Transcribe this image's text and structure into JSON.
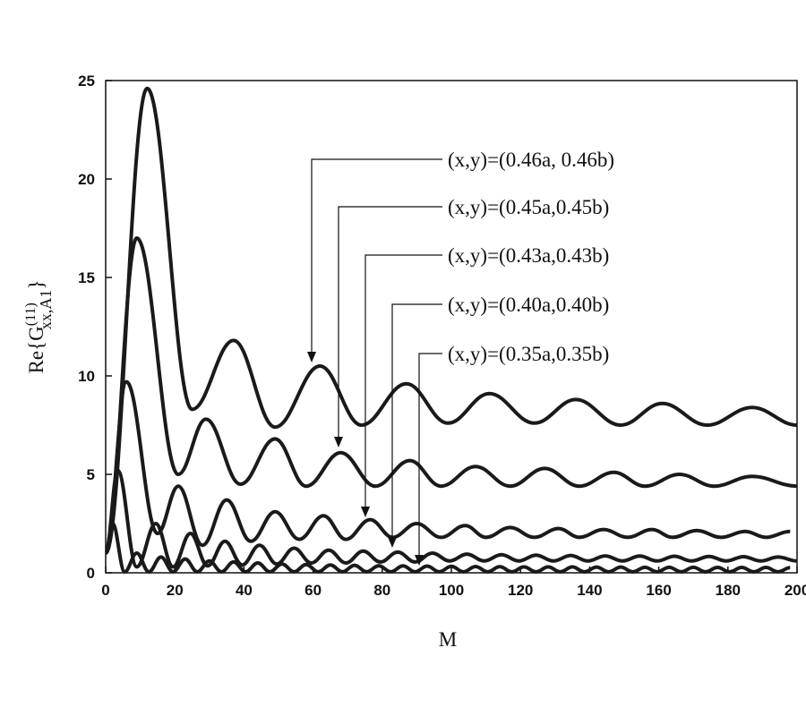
{
  "chart_data": {
    "type": "line",
    "xlabel": "M",
    "ylabel": {
      "base": "Re{G",
      "sup": "(11)",
      "sub": "xx,A1",
      "close": "}"
    },
    "xlim": [
      0,
      200
    ],
    "xticks": [
      0,
      20,
      40,
      60,
      80,
      100,
      120,
      140,
      160,
      180,
      200
    ],
    "ylim": [
      0,
      25
    ],
    "yticks": [
      0,
      5,
      10,
      15,
      20,
      25
    ],
    "grid": false,
    "color": "#1a1a1a",
    "series": [
      {
        "name": "(x,y)=(0.46a, 0.46b)",
        "x": [
          0,
          12,
          25,
          37,
          49,
          62,
          74,
          87,
          99,
          111,
          124,
          136,
          149,
          161,
          174,
          187,
          200
        ],
        "values": [
          1,
          24.6,
          8.3,
          11.8,
          7.4,
          10.5,
          7.5,
          9.6,
          7.6,
          9.1,
          7.6,
          8.8,
          7.5,
          8.6,
          7.5,
          8.4,
          7.5
        ]
      },
      {
        "name": "(x,y)=(0.45a,0.45b)",
        "x": [
          0,
          9,
          21,
          29,
          39,
          49,
          58,
          68,
          78,
          88,
          97,
          107,
          117,
          127,
          137,
          147,
          156,
          166,
          176,
          187,
          200
        ],
        "values": [
          1,
          17.0,
          5.0,
          7.8,
          4.5,
          6.8,
          4.4,
          6.1,
          4.4,
          5.7,
          4.4,
          5.4,
          4.4,
          5.3,
          4.4,
          5.1,
          4.4,
          5.0,
          4.4,
          4.9,
          4.4
        ]
      },
      {
        "name": "(x,y)=(0.43a,0.43b)",
        "x": [
          0,
          6,
          15,
          21,
          28,
          35,
          42,
          49,
          56,
          63,
          69.5,
          76.5,
          83,
          90,
          97,
          104,
          110,
          117,
          124,
          131,
          137,
          144,
          151,
          158,
          164,
          171,
          178,
          185,
          191,
          198
        ],
        "values": [
          1,
          9.7,
          2.0,
          4.4,
          1.4,
          3.7,
          1.6,
          3.1,
          1.7,
          2.9,
          1.7,
          2.7,
          1.8,
          2.5,
          1.8,
          2.4,
          1.8,
          2.3,
          1.8,
          2.25,
          1.8,
          2.2,
          1.8,
          2.2,
          1.8,
          2.15,
          1.8,
          2.1,
          1.8,
          2.1
        ]
      },
      {
        "name": "(x,y)=(0.40a,0.40b)",
        "x": [
          0,
          3.5,
          9,
          14.5,
          19.5,
          24.5,
          29.5,
          34.5,
          39.5,
          44.5,
          49.5,
          54.5,
          59.5,
          64.5,
          69.5,
          74.5,
          79.5,
          84.5,
          89.5,
          94.5,
          99.5,
          104.5,
          109.5,
          114.5,
          119.5,
          124.5,
          129.5,
          134.5,
          139.5,
          144.5,
          149.5,
          154.5,
          159.5,
          164.5,
          169.5,
          174.5,
          179.5,
          184.5,
          189.5,
          194.5,
          200
        ],
        "values": [
          1,
          5.2,
          0.3,
          2.5,
          0.3,
          2.0,
          0.35,
          1.6,
          0.4,
          1.4,
          0.45,
          1.25,
          0.5,
          1.15,
          0.5,
          1.1,
          0.55,
          1.05,
          0.55,
          1.0,
          0.6,
          0.95,
          0.6,
          0.92,
          0.6,
          0.9,
          0.6,
          0.88,
          0.6,
          0.86,
          0.6,
          0.85,
          0.6,
          0.84,
          0.6,
          0.83,
          0.6,
          0.82,
          0.6,
          0.8,
          0.6
        ]
      },
      {
        "name": "(x,y)=(0.35a,0.35b)",
        "x": [
          0,
          2,
          5.5,
          9,
          12.5,
          16,
          19.5,
          23,
          26.5,
          30,
          33.5,
          37,
          40.5,
          44,
          47.5,
          51,
          54.5,
          58,
          61.5,
          65,
          68.5,
          72,
          75.5,
          79,
          82.5,
          86,
          89.5,
          93,
          96.5,
          100,
          103.5,
          107,
          110.5,
          114,
          117.5,
          121,
          124.5,
          128,
          131.5,
          135,
          138.5,
          142,
          145.5,
          149,
          152.5,
          156,
          159.5,
          163,
          166.5,
          170,
          173.5,
          177,
          180.5,
          184,
          187.5,
          191,
          194.5,
          198
        ],
        "values": [
          1,
          2.5,
          0.05,
          1.0,
          0.05,
          0.8,
          0.05,
          0.7,
          0.05,
          0.6,
          0.05,
          0.55,
          0.05,
          0.5,
          0.05,
          0.45,
          0.05,
          0.42,
          0.05,
          0.4,
          0.05,
          0.38,
          0.05,
          0.36,
          0.05,
          0.35,
          0.05,
          0.34,
          0.05,
          0.33,
          0.05,
          0.32,
          0.05,
          0.31,
          0.05,
          0.3,
          0.05,
          0.3,
          0.05,
          0.3,
          0.05,
          0.29,
          0.05,
          0.29,
          0.05,
          0.28,
          0.05,
          0.28,
          0.05,
          0.28,
          0.05,
          0.27,
          0.05,
          0.27,
          0.05,
          0.27,
          0.05,
          0.26
        ]
      }
    ]
  }
}
